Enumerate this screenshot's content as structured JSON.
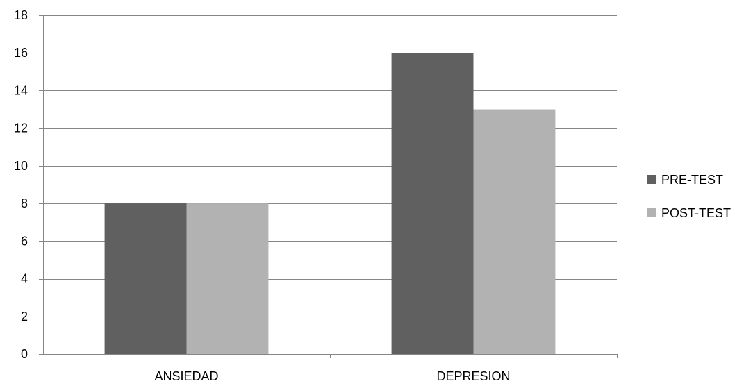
{
  "chart_data": {
    "type": "bar",
    "title": "",
    "xlabel": "",
    "ylabel": "",
    "categories": [
      "ANSIEDAD",
      "DEPRESION"
    ],
    "series": [
      {
        "name": "PRE-TEST",
        "values": [
          8,
          16
        ],
        "color": "#606060"
      },
      {
        "name": "POST-TEST",
        "values": [
          8,
          13
        ],
        "color": "#b2b2b2"
      }
    ],
    "ylim": [
      0,
      18
    ],
    "yticks": [
      "0",
      "2",
      "4",
      "6",
      "8",
      "10",
      "12",
      "14",
      "16",
      "18"
    ],
    "grid": true,
    "gridColor": "#868686",
    "legend_position": "right"
  }
}
